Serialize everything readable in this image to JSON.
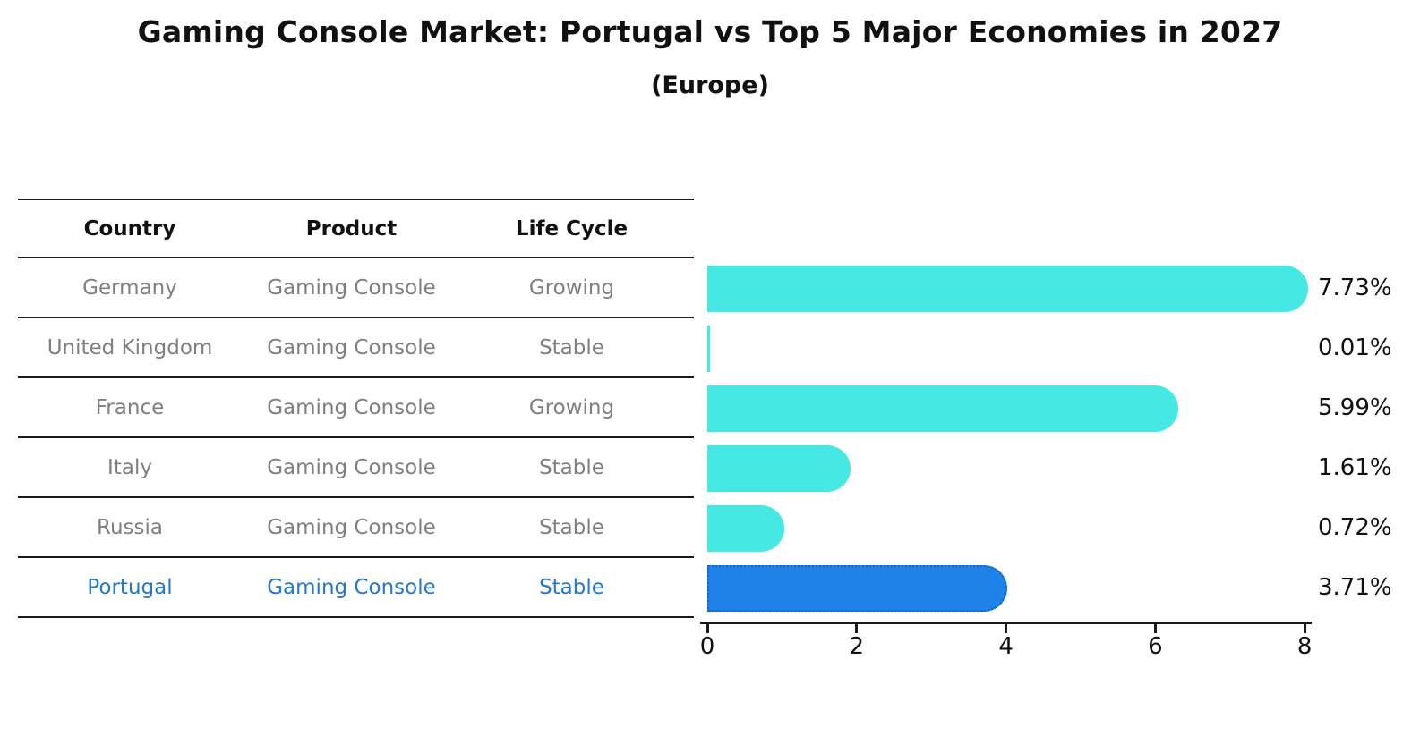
{
  "title": "Gaming Console Market: Portugal vs Top 5 Major Economies in 2027",
  "subtitle": "(Europe)",
  "table": {
    "headers": [
      "Country",
      "Product",
      "Life Cycle"
    ],
    "rows": [
      {
        "country": "Germany",
        "product": "Gaming Console",
        "life_cycle": "Growing",
        "highlight": false
      },
      {
        "country": "United Kingdom",
        "product": "Gaming Console",
        "life_cycle": "Stable",
        "highlight": false
      },
      {
        "country": "France",
        "product": "Gaming Console",
        "life_cycle": "Growing",
        "highlight": false
      },
      {
        "country": "Italy",
        "product": "Gaming Console",
        "life_cycle": "Stable",
        "highlight": false
      },
      {
        "country": "Russia",
        "product": "Gaming Console",
        "life_cycle": "Stable",
        "highlight": false
      },
      {
        "country": "Portugal",
        "product": "Gaming Console",
        "life_cycle": "Stable",
        "highlight": true
      }
    ]
  },
  "chart_data": {
    "type": "bar",
    "orientation": "horizontal",
    "categories": [
      "Germany",
      "United Kingdom",
      "France",
      "Italy",
      "Russia",
      "Portugal"
    ],
    "values": [
      7.73,
      0.01,
      5.99,
      1.61,
      0.72,
      3.71
    ],
    "value_labels": [
      "7.73%",
      "0.01%",
      "5.99%",
      "1.61%",
      "0.72%",
      "3.71%"
    ],
    "x_ticks": [
      "0",
      "2",
      "4",
      "6",
      "8"
    ],
    "xlim": [
      0,
      8
    ],
    "grid": false,
    "legend": null,
    "colors": {
      "bar": "#46E8E4",
      "highlight_bar": "#1E82E8",
      "highlight_bar_border": "#1565C8",
      "row_text": "#7f7f7f",
      "highlight_row_text": "#2478CC",
      "axis": "#1a1a1a"
    },
    "highlight_index": 5
  }
}
